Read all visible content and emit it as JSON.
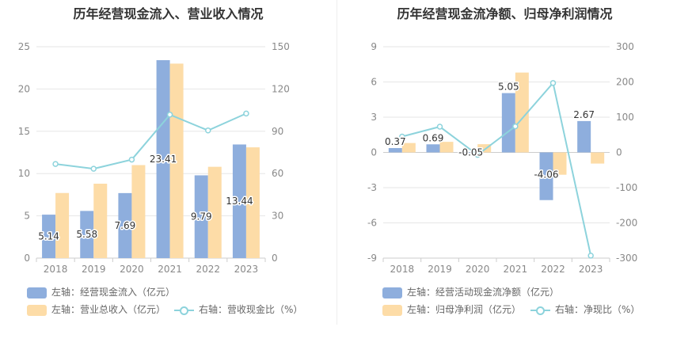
{
  "chart_data": [
    {
      "type": "bar+line",
      "title": "历年经营现金流入、营业收入情况",
      "categories": [
        "2018",
        "2019",
        "2020",
        "2021",
        "2022",
        "2023"
      ],
      "left_axis": {
        "ylim": [
          0,
          25
        ],
        "ticks": [
          "0",
          "5",
          "10",
          "15",
          "20",
          "25"
        ]
      },
      "right_axis": {
        "ylim": [
          0,
          150
        ],
        "ticks": [
          "0",
          "30",
          "60",
          "90",
          "120",
          "150"
        ]
      },
      "series": [
        {
          "name": "左轴：经营现金流入（亿元）",
          "type": "bar",
          "axis": "left",
          "color": "#8eaedd",
          "values": [
            5.14,
            5.58,
            7.69,
            23.41,
            9.79,
            13.44
          ],
          "labels": [
            "5.14",
            "5.58",
            "7.69",
            "23.41",
            "9.79",
            "13.44"
          ]
        },
        {
          "name": "左轴：营业总收入（亿元）",
          "type": "bar",
          "axis": "left",
          "color": "#fddca7",
          "values": [
            7.7,
            8.8,
            11.0,
            23.0,
            10.8,
            13.1
          ]
        },
        {
          "name": "右轴：营收现金比（%）",
          "type": "line",
          "axis": "right",
          "color": "#8dd3dc",
          "values": [
            66.8,
            63.4,
            69.9,
            101.8,
            90.6,
            102.6
          ]
        }
      ]
    },
    {
      "type": "bar+line",
      "title": "历年经营现金流净额、归母净利润情况",
      "categories": [
        "2018",
        "2019",
        "2020",
        "2021",
        "2022",
        "2023"
      ],
      "left_axis": {
        "ylim": [
          -9,
          9
        ],
        "ticks": [
          "-9",
          "-6",
          "-3",
          "0",
          "3",
          "6",
          "9"
        ]
      },
      "right_axis": {
        "ylim": [
          -300,
          300
        ],
        "ticks": [
          "-300",
          "-200",
          "-100",
          "0",
          "100",
          "200",
          "300"
        ]
      },
      "series": [
        {
          "name": "左轴：经营活动现金流净额（亿元）",
          "type": "bar",
          "axis": "left",
          "color": "#8eaedd",
          "values": [
            0.37,
            0.69,
            -0.05,
            5.05,
            -4.06,
            2.67
          ],
          "labels": [
            "0.37",
            "0.69",
            "-0.05",
            "5.05",
            "-4.06",
            "2.67"
          ]
        },
        {
          "name": "左轴：归母净利润（亿元）",
          "type": "bar",
          "axis": "left",
          "color": "#fddca7",
          "values": [
            0.8,
            0.9,
            0.7,
            6.8,
            -1.9,
            -0.95
          ]
        },
        {
          "name": "右轴：净现比（%）",
          "type": "line",
          "axis": "right",
          "color": "#8dd3dc",
          "values": [
            45,
            73,
            -7,
            74,
            197,
            -293
          ]
        }
      ]
    }
  ]
}
